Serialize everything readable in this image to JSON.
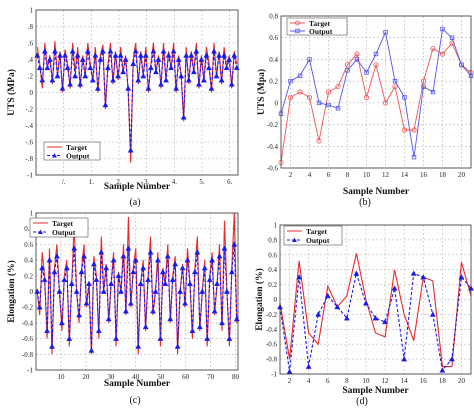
{
  "chart_data": [
    {
      "type": "line",
      "panel_label": "(a)",
      "xlabel": "Sample Number",
      "ylabel": "UTS (MPa)",
      "xlim": [
        0,
        80
      ],
      "ylim": [
        -1,
        1
      ],
      "x_tick_labels": [
        "/.",
        "1.",
        "2.",
        "3.",
        "4.",
        "5.",
        "6."
      ],
      "y_tick_labels": [
        "1",
        ".8",
        ".6",
        ".4",
        ".2",
        "0",
        "-.2",
        "-.4",
        "-.6",
        "-.8",
        "-1"
      ],
      "grid": true,
      "legend_position": "lower-left",
      "colors": {
        "target": "#e8292b",
        "output": "#1a1aee"
      },
      "series": [
        {
          "name": "Target",
          "style": "solid",
          "values": [
            0.55,
            0.35,
            0.05,
            0.6,
            0.3,
            0.45,
            0.1,
            0.62,
            0.2,
            0.5,
            0.0,
            0.52,
            0.35,
            0.05,
            0.6,
            0.25,
            0.55,
            0.05,
            0.45,
            0.2,
            0.6,
            0.35,
            0.15,
            0.55,
            0.0,
            0.45,
            0.58,
            -0.2,
            0.35,
            0.6,
            0.1,
            0.5,
            0.15,
            0.55,
            0.25,
            0.45,
            0.0,
            -0.85,
            0.4,
            0.6,
            0.1,
            0.5,
            0.2,
            0.55,
            0.0,
            0.35,
            0.6,
            0.25,
            0.45,
            0.05,
            0.6,
            0.15,
            0.5,
            0.3,
            0.6,
            0.0,
            0.45,
            0.2,
            -0.35,
            0.55,
            0.1,
            0.5,
            0.25,
            0.6,
            0.05,
            0.45,
            0.15,
            0.55,
            0.35,
            0.0,
            0.6,
            0.2,
            0.5,
            0.1,
            0.55,
            0.3,
            0.45,
            0.05,
            0.5,
            0.35
          ]
        },
        {
          "name": "Output",
          "style": "dashed-triangle",
          "values": [
            0.45,
            0.3,
            0.15,
            0.5,
            0.3,
            0.4,
            0.15,
            0.5,
            0.2,
            0.45,
            0.05,
            0.45,
            0.3,
            0.1,
            0.5,
            0.2,
            0.45,
            0.1,
            0.4,
            0.2,
            0.5,
            0.3,
            0.15,
            0.45,
            0.05,
            0.4,
            0.5,
            -0.15,
            0.3,
            0.5,
            0.15,
            0.45,
            0.2,
            0.45,
            0.25,
            0.4,
            0.05,
            -0.7,
            0.35,
            0.5,
            0.15,
            0.45,
            0.2,
            0.45,
            0.05,
            0.3,
            0.5,
            0.25,
            0.4,
            0.1,
            0.5,
            0.15,
            0.45,
            0.3,
            0.5,
            0.05,
            0.4,
            0.2,
            -0.3,
            0.45,
            0.15,
            0.45,
            0.25,
            0.5,
            0.1,
            0.4,
            0.15,
            0.45,
            0.3,
            0.05,
            0.5,
            0.2,
            0.45,
            0.15,
            0.45,
            0.3,
            0.4,
            0.1,
            0.45,
            0.3
          ]
        }
      ]
    },
    {
      "type": "line",
      "panel_label": "(b)",
      "xlabel": "Sample Number",
      "ylabel": "UTS (Mpa)",
      "xlim": [
        1,
        21
      ],
      "ylim": [
        -0.6,
        0.8
      ],
      "x_tick_labels": [
        "2",
        "4",
        "6",
        "8",
        "10",
        "12",
        "14",
        "16",
        "18",
        "20"
      ],
      "y_tick_labels": [
        "0.8",
        "0.6",
        "0.4",
        "0.2",
        "0",
        "-0.2",
        "-0.4",
        "-0.6"
      ],
      "grid": true,
      "legend_position": "top-left",
      "colors": {
        "target": "#ee5555",
        "output": "#5555ee"
      },
      "x": [
        1,
        2,
        3,
        4,
        5,
        6,
        7,
        8,
        9,
        10,
        11,
        12,
        13,
        14,
        15,
        16,
        17,
        18,
        19,
        20,
        21
      ],
      "series": [
        {
          "name": "Target",
          "marker": "circle",
          "values": [
            -0.55,
            0.05,
            0.1,
            0.05,
            -0.35,
            0.1,
            0.15,
            0.35,
            0.45,
            0.05,
            0.35,
            0.0,
            0.15,
            -0.25,
            -0.25,
            0.2,
            0.5,
            0.45,
            0.55,
            0.35,
            0.28
          ]
        },
        {
          "name": "Output",
          "marker": "square",
          "values": [
            -0.1,
            0.2,
            0.25,
            0.4,
            0.0,
            -0.02,
            -0.05,
            0.3,
            0.4,
            0.28,
            0.45,
            0.65,
            0.2,
            0.05,
            -0.5,
            0.15,
            0.1,
            0.68,
            0.6,
            0.35,
            0.25
          ]
        }
      ]
    },
    {
      "type": "line",
      "panel_label": "(c)",
      "xlabel": "Sample Number",
      "ylabel": "Elongation (%)",
      "xlim": [
        0,
        82
      ],
      "ylim": [
        -1,
        1
      ],
      "x_tick_labels": [
        "10",
        "20",
        "30",
        "40",
        "50",
        "60",
        "70",
        "80"
      ],
      "y_tick_labels": [
        "1",
        "0.8",
        "0.6",
        "0.4",
        "0.2",
        "0",
        "-0.2",
        "-0.4",
        "-0.6",
        "-0.8",
        "-1"
      ],
      "grid": true,
      "legend_position": "top-left",
      "colors": {
        "target": "#e8292b",
        "output": "#1a1aee"
      },
      "series": [
        {
          "name": "Target",
          "style": "solid",
          "values": [
            0.0,
            -0.3,
            0.5,
            0.2,
            -0.6,
            0.55,
            -0.8,
            0.3,
            0.6,
            0.0,
            -0.5,
            0.2,
            0.4,
            -0.7,
            0.1,
            0.85,
            0.0,
            -0.4,
            0.3,
            0.6,
            -0.2,
            0.1,
            -0.8,
            0.45,
            0.2,
            -0.6,
            0.7,
            0.0,
            0.35,
            -0.4,
            0.1,
            0.5,
            -0.7,
            0.25,
            0.0,
            0.6,
            -0.3,
            0.95,
            -0.2,
            0.3,
            0.55,
            -0.8,
            0.1,
            0.4,
            -0.5,
            0.2,
            0.7,
            -0.3,
            0.0,
            0.5,
            -0.7,
            0.3,
            0.1,
            0.6,
            -0.4,
            0.2,
            0.45,
            -0.8,
            0.0,
            0.35,
            -0.2,
            0.55,
            0.1,
            -0.6,
            0.3,
            0.7,
            -0.5,
            0.0,
            0.4,
            -0.7,
            0.2,
            0.5,
            -0.3,
            0.1,
            0.6,
            -0.5,
            0.9,
            0.0,
            -0.7,
            0.3,
            1.0,
            -0.4
          ]
        },
        {
          "name": "Output",
          "style": "dashed-triangle",
          "values": [
            0.0,
            -0.2,
            0.3,
            0.15,
            -0.5,
            0.4,
            -0.7,
            0.25,
            0.45,
            0.0,
            -0.4,
            0.15,
            0.3,
            -0.6,
            0.1,
            0.55,
            0.0,
            -0.3,
            0.25,
            0.45,
            -0.15,
            0.1,
            -0.75,
            0.35,
            0.15,
            -0.5,
            0.5,
            0.0,
            0.3,
            -0.35,
            0.1,
            0.4,
            -0.6,
            0.2,
            0.0,
            0.45,
            -0.25,
            0.55,
            -0.15,
            0.25,
            0.4,
            -0.7,
            0.1,
            0.3,
            -0.45,
            0.15,
            0.5,
            -0.25,
            0.0,
            0.4,
            -0.6,
            0.25,
            0.1,
            0.45,
            -0.35,
            0.15,
            0.35,
            -0.7,
            0.0,
            0.3,
            -0.15,
            0.4,
            0.1,
            -0.5,
            0.25,
            0.5,
            -0.45,
            0.0,
            0.3,
            -0.6,
            0.15,
            0.4,
            -0.25,
            0.1,
            0.45,
            -0.4,
            0.55,
            0.0,
            -0.6,
            0.25,
            0.6,
            -0.35
          ]
        }
      ]
    },
    {
      "type": "line",
      "panel_label": "(d)",
      "xlabel": "Sample Number",
      "ylabel": "Elongation (%)",
      "xlim": [
        1,
        21
      ],
      "ylim": [
        -1,
        1
      ],
      "x_tick_labels": [
        "2",
        "4",
        "6",
        "8",
        "10",
        "12",
        "14",
        "16",
        "18",
        "20"
      ],
      "y_tick_labels": [
        "1",
        "0.8",
        "0.6",
        "0.4",
        "0.2",
        "0",
        "-0.2",
        "-0.4",
        "-0.6",
        "-0.8",
        "-1"
      ],
      "grid": true,
      "legend_position": "top-left",
      "colors": {
        "target": "#e8292b",
        "output": "#1a1aee"
      },
      "x": [
        1,
        2,
        3,
        4,
        5,
        6,
        7,
        8,
        9,
        10,
        11,
        12,
        13,
        14,
        15,
        16,
        17,
        18,
        19,
        20,
        21
      ],
      "series": [
        {
          "name": "Target",
          "style": "solid",
          "values": [
            -0.05,
            -0.8,
            0.52,
            -0.45,
            -0.6,
            0.18,
            -0.1,
            0.05,
            0.62,
            0.0,
            -0.45,
            -0.5,
            0.4,
            -0.2,
            -0.55,
            0.3,
            0.25,
            -0.9,
            -0.9,
            0.5,
            0.05
          ]
        },
        {
          "name": "Output",
          "style": "dashed-triangle",
          "values": [
            -0.1,
            -0.97,
            0.3,
            -0.9,
            -0.2,
            0.05,
            -0.1,
            -0.25,
            0.35,
            -0.05,
            -0.25,
            -0.3,
            0.15,
            -0.8,
            0.35,
            0.3,
            -0.2,
            -0.95,
            -0.8,
            0.3,
            0.15
          ]
        }
      ]
    }
  ]
}
